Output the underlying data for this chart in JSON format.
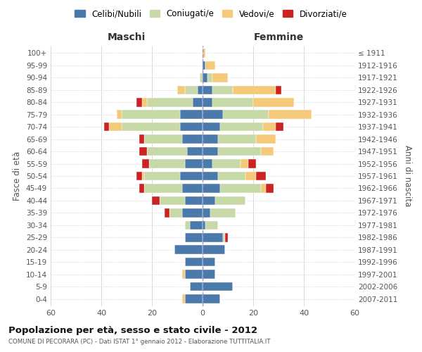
{
  "age_groups": [
    "100+",
    "95-99",
    "90-94",
    "85-89",
    "80-84",
    "75-79",
    "70-74",
    "65-69",
    "60-64",
    "55-59",
    "50-54",
    "45-49",
    "40-44",
    "35-39",
    "30-34",
    "25-29",
    "20-24",
    "15-19",
    "10-14",
    "5-9",
    "0-4"
  ],
  "birth_years": [
    "≤ 1911",
    "1912-1916",
    "1917-1921",
    "1922-1926",
    "1927-1931",
    "1932-1936",
    "1937-1941",
    "1942-1946",
    "1947-1951",
    "1952-1956",
    "1957-1961",
    "1962-1966",
    "1967-1971",
    "1972-1976",
    "1977-1981",
    "1982-1986",
    "1987-1991",
    "1992-1996",
    "1997-2001",
    "2002-2006",
    "2007-2011"
  ],
  "colors": {
    "celibi": "#4a7aab",
    "coniugati": "#c8d9a8",
    "vedovi": "#f5c97a",
    "divorziati": "#cc2222"
  },
  "maschi": {
    "celibi": [
      0,
      0,
      0,
      2,
      4,
      9,
      9,
      8,
      6,
      7,
      9,
      8,
      7,
      8,
      5,
      7,
      11,
      7,
      7,
      5,
      7
    ],
    "coniugati": [
      0,
      0,
      1,
      5,
      18,
      23,
      23,
      15,
      16,
      14,
      14,
      15,
      10,
      5,
      2,
      0,
      0,
      0,
      0,
      0,
      0
    ],
    "vedovi": [
      0,
      0,
      0,
      3,
      2,
      2,
      5,
      0,
      0,
      0,
      1,
      0,
      0,
      0,
      0,
      0,
      0,
      0,
      1,
      0,
      1
    ],
    "divorziati": [
      0,
      0,
      0,
      0,
      2,
      0,
      2,
      2,
      3,
      3,
      2,
      2,
      3,
      2,
      0,
      0,
      0,
      0,
      0,
      0,
      0
    ]
  },
  "femmine": {
    "celibi": [
      0,
      1,
      2,
      4,
      4,
      8,
      7,
      6,
      6,
      4,
      6,
      7,
      5,
      3,
      1,
      8,
      9,
      5,
      5,
      12,
      7
    ],
    "coniugati": [
      0,
      0,
      2,
      8,
      16,
      18,
      17,
      15,
      17,
      11,
      11,
      16,
      12,
      10,
      5,
      1,
      0,
      0,
      0,
      0,
      0
    ],
    "vedovi": [
      1,
      4,
      6,
      17,
      16,
      17,
      5,
      8,
      5,
      3,
      4,
      2,
      0,
      0,
      0,
      0,
      0,
      0,
      0,
      0,
      0
    ],
    "divorziati": [
      0,
      0,
      0,
      2,
      0,
      0,
      3,
      0,
      0,
      3,
      4,
      3,
      0,
      0,
      0,
      1,
      0,
      0,
      0,
      0,
      0
    ]
  },
  "title": "Popolazione per età, sesso e stato civile - 2012",
  "subtitle": "COMUNE DI PECORARA (PC) - Dati ISTAT 1° gennaio 2012 - Elaborazione TUTTITALIA.IT",
  "xlabel_left": "Maschi",
  "xlabel_right": "Femmine",
  "ylabel_left": "Fasce di età",
  "ylabel_right": "Anni di nascita",
  "xlim": 60,
  "legend_labels": [
    "Celibi/Nubili",
    "Coniugati/e",
    "Vedovi/e",
    "Divorziati/e"
  ],
  "background_color": "#ffffff"
}
